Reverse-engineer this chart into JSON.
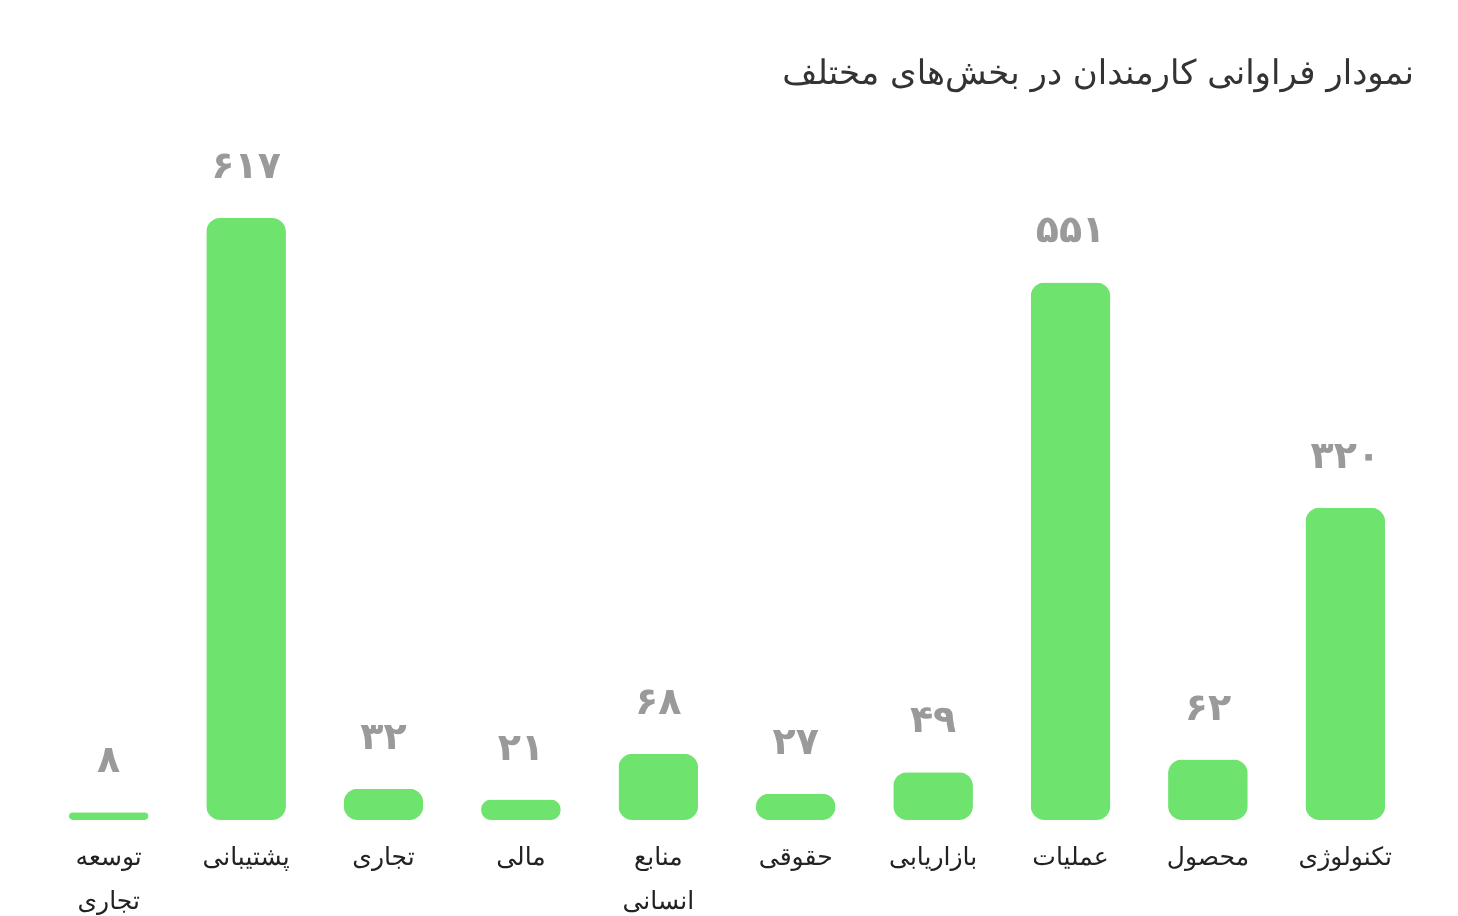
{
  "chart_data": {
    "type": "bar",
    "title": "نمودار فراوانی کارمندان در بخش‌های مختلف",
    "categories": [
      "توسعه تجاری",
      "پشتیبانی",
      "تجاری",
      "مالی",
      "منابع انسانی",
      "حقوقی",
      "بازاریابی",
      "عملیات",
      "محصول",
      "تکنولوژی"
    ],
    "values": [
      8,
      617,
      32,
      21,
      68,
      27,
      49,
      551,
      62,
      320
    ],
    "value_labels": [
      "۸",
      "۶۱۷",
      "۳۲",
      "۲۱",
      "۶۸",
      "۲۷",
      "۴۹",
      "۵۵۱",
      "۶۲",
      "۳۲۰"
    ],
    "color": "#6ee36e",
    "grid": false,
    "tick_labels": "x"
  }
}
